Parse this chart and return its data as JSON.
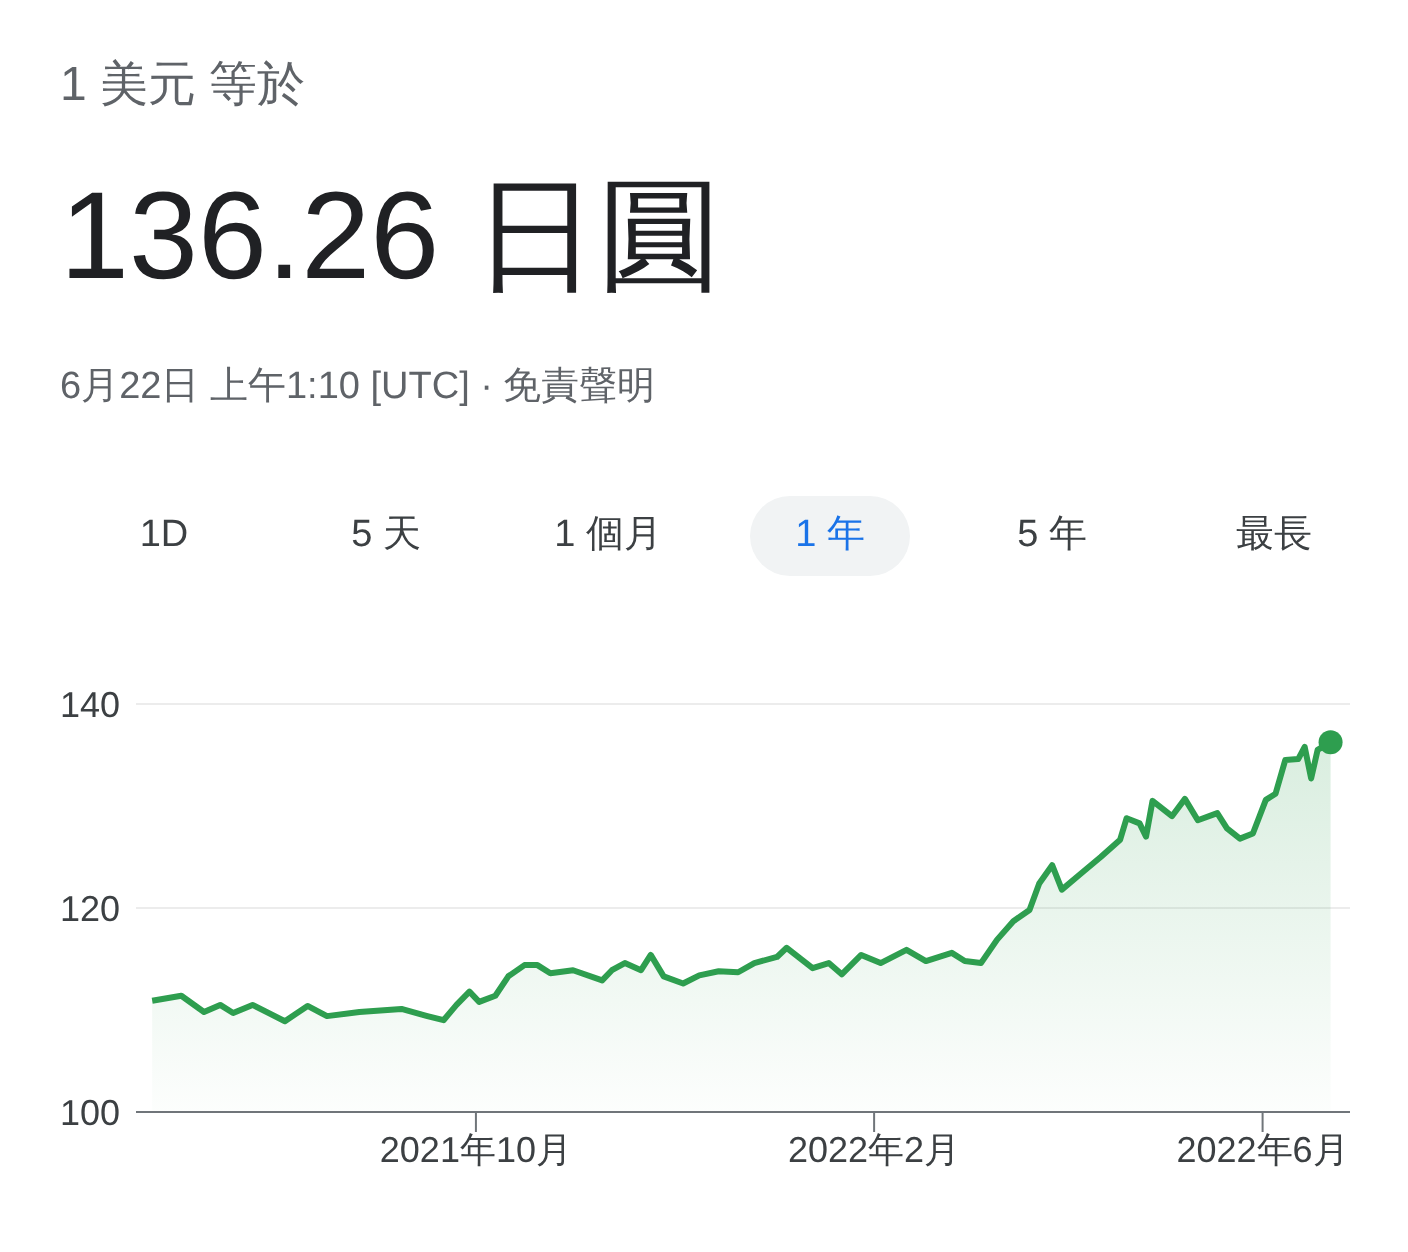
{
  "chart_data": {
    "type": "area",
    "title": "1 美元 等於",
    "subtitle": "136.26 日圓",
    "annotations": [
      "6月22日 上午1:10 [UTC] · 免責聲明",
      "1D",
      "5 天",
      "1 個月",
      "1 年",
      "5 年",
      "最長"
    ],
    "x": [
      "2021-06-23",
      "2021-07-02",
      "2021-07-09",
      "2021-07-14",
      "2021-07-18",
      "2021-07-24",
      "2021-08-03",
      "2021-08-10",
      "2021-08-16",
      "2021-08-26",
      "2021-09-08",
      "2021-09-16",
      "2021-09-21",
      "2021-09-25",
      "2021-09-29",
      "2021-10-02",
      "2021-10-07",
      "2021-10-11",
      "2021-10-16",
      "2021-10-20",
      "2021-10-24",
      "2021-10-31",
      "2021-11-09",
      "2021-11-12",
      "2021-11-16",
      "2021-11-21",
      "2021-11-24",
      "2021-11-28",
      "2021-12-04",
      "2021-12-09",
      "2021-12-15",
      "2021-12-21",
      "2021-12-26",
      "2022-01-02",
      "2022-01-05",
      "2022-01-13",
      "2022-01-18",
      "2022-01-22",
      "2022-01-28",
      "2022-02-03",
      "2022-02-11",
      "2022-02-17",
      "2022-02-25",
      "2022-03-01",
      "2022-03-06",
      "2022-03-11",
      "2022-03-16",
      "2022-03-21",
      "2022-03-24",
      "2022-03-28",
      "2022-03-31",
      "2022-04-06",
      "2022-04-12",
      "2022-04-18",
      "2022-04-20",
      "2022-04-24",
      "2022-04-26",
      "2022-04-28",
      "2022-05-04",
      "2022-05-08",
      "2022-05-12",
      "2022-05-18",
      "2022-05-21",
      "2022-05-25",
      "2022-05-29",
      "2022-06-02",
      "2022-06-05",
      "2022-06-08",
      "2022-06-12",
      "2022-06-14",
      "2022-06-16",
      "2022-06-18",
      "2022-06-22"
    ],
    "series": [
      {
        "color": "#2e9e4f",
        "values": [
          110.9,
          111.4,
          109.8,
          110.5,
          109.7,
          110.5,
          108.9,
          110.4,
          109.4,
          109.8,
          110.1,
          109.4,
          109.0,
          110.5,
          111.8,
          110.8,
          111.4,
          113.3,
          114.4,
          114.4,
          113.6,
          113.9,
          112.9,
          113.9,
          114.6,
          113.9,
          115.4,
          113.3,
          112.6,
          113.4,
          113.8,
          113.7,
          114.6,
          115.2,
          116.1,
          114.1,
          114.6,
          113.5,
          115.4,
          114.6,
          115.9,
          114.8,
          115.6,
          114.8,
          114.6,
          116.9,
          118.7,
          119.8,
          122.4,
          124.2,
          121.8,
          123.4,
          125.0,
          126.7,
          128.8,
          128.3,
          127.0,
          130.5,
          129.0,
          130.7,
          128.6,
          129.3,
          127.8,
          126.8,
          127.3,
          130.6,
          131.2,
          134.5,
          134.6,
          135.8,
          132.7,
          135.5,
          136.26
        ]
      }
    ],
    "xlim": [
      "2021-06-18",
      "2022-06-28"
    ],
    "xticks": [
      {
        "value": "2021-10-01",
        "label": "2021年10月"
      },
      {
        "value": "2022-02-01",
        "label": "2022年2月"
      },
      {
        "value": "2022-06-01",
        "label": "2022年6月"
      }
    ],
    "ylim": [
      100,
      140
    ],
    "yticks": [
      100,
      120,
      140
    ],
    "grid": "y"
  }
}
